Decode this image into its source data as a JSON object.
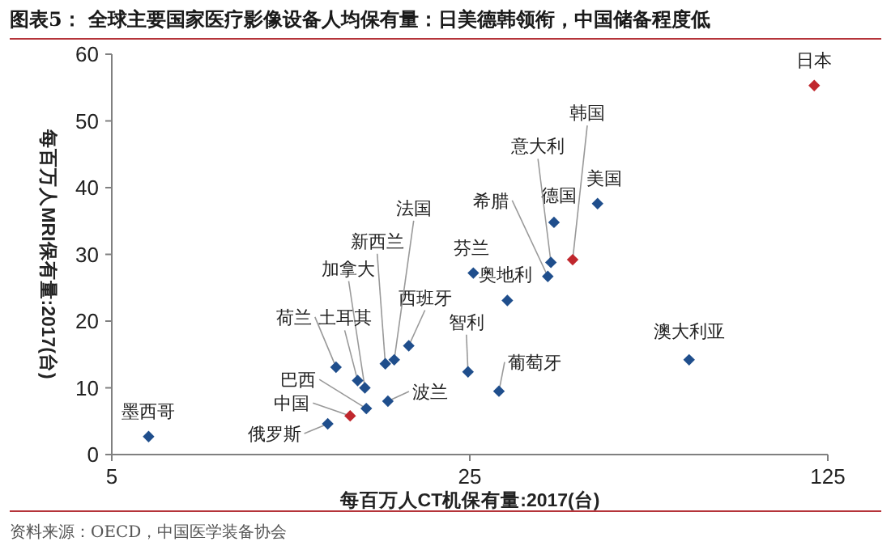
{
  "chart_data": {
    "type": "scatter",
    "title": "图表5：  全球主要国家医疗影像设备人均保有量：日美德韩领衔，中国储备程度低",
    "xlabel": "每百万人CT机保有量:2017(台)",
    "ylabel": "每百万人MRI保有量:2017(台)",
    "log": "x",
    "xlim": [
      5,
      125
    ],
    "xticks": [
      5,
      25,
      125
    ],
    "ylim": [
      0,
      60
    ],
    "yticks": [
      0,
      10,
      20,
      30,
      40,
      50,
      60
    ],
    "marker": "diamond",
    "grid": false,
    "series": [
      {
        "color": "#1f4e8c",
        "x": [
          44.4,
          36.5,
          36.0,
          35.5,
          25.4,
          29.6,
          28.5,
          24.8,
          67,
          19.0,
          17.8,
          17.1,
          15.6,
          15.1,
          13.7,
          15.7,
          13.2,
          17.3,
          5.9
        ],
        "values": [
          37.6,
          34.8,
          28.8,
          26.7,
          27.2,
          23.1,
          9.5,
          12.4,
          14.2,
          16.3,
          14.2,
          13.6,
          10.0,
          11.1,
          13.1,
          6.9,
          4.6,
          8.0,
          2.7
        ]
      },
      {
        "color": "#c0272d",
        "x": [
          117.6,
          39.7,
          14.6
        ],
        "values": [
          55.3,
          29.2,
          5.8
        ]
      }
    ],
    "annotations": [
      {
        "text": "日本",
        "x": 117.6,
        "y": 55.3
      },
      {
        "text": "韩国",
        "x": 39.7,
        "y": 29.2
      },
      {
        "text": "美国",
        "x": 44.4,
        "y": 37.6
      },
      {
        "text": "德国",
        "x": 36.5,
        "y": 34.8
      },
      {
        "text": "意大利",
        "x": 36.0,
        "y": 28.8
      },
      {
        "text": "希腊",
        "x": 35.5,
        "y": 26.7
      },
      {
        "text": "芬兰",
        "x": 25.4,
        "y": 27.2
      },
      {
        "text": "奥地利",
        "x": 29.6,
        "y": 23.1
      },
      {
        "text": "葡萄牙",
        "x": 28.5,
        "y": 9.5
      },
      {
        "text": "智利",
        "x": 24.8,
        "y": 12.4
      },
      {
        "text": "澳大利亚",
        "x": 67,
        "y": 14.2
      },
      {
        "text": "西班牙",
        "x": 19.0,
        "y": 16.3
      },
      {
        "text": "法国",
        "x": 17.8,
        "y": 14.2
      },
      {
        "text": "新西兰",
        "x": 17.1,
        "y": 13.6
      },
      {
        "text": "加拿大",
        "x": 15.6,
        "y": 10.0
      },
      {
        "text": "土耳其",
        "x": 15.1,
        "y": 11.1
      },
      {
        "text": "荷兰",
        "x": 13.7,
        "y": 13.1
      },
      {
        "text": "巴西",
        "x": 15.7,
        "y": 6.9
      },
      {
        "text": "中国",
        "x": 14.6,
        "y": 5.8
      },
      {
        "text": "俄罗斯",
        "x": 13.2,
        "y": 4.6
      },
      {
        "text": "波兰",
        "x": 17.3,
        "y": 8.0
      },
      {
        "text": "墨西哥",
        "x": 5.9,
        "y": 2.7
      },
      "资料来源：OECD，中国医学装备协会"
    ]
  }
}
